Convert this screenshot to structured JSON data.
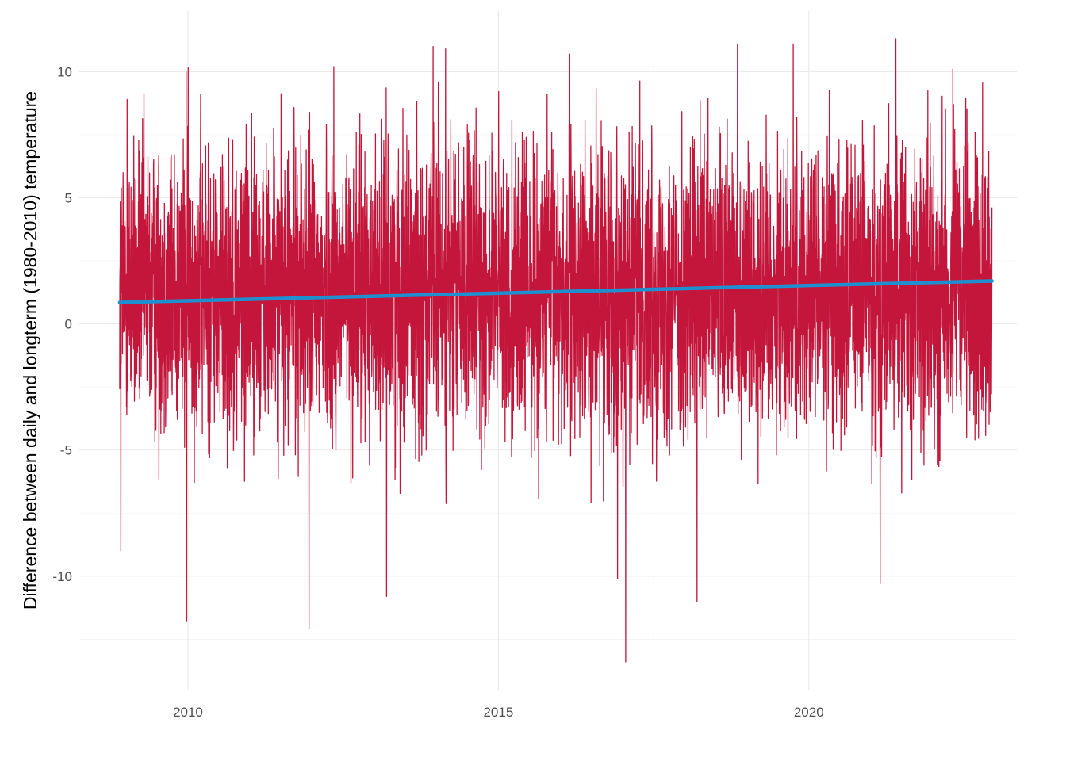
{
  "chart_data": {
    "type": "line",
    "title": "",
    "xlabel": "",
    "ylabel": "Difference between daily and longterm (1980-2010) temperature",
    "xlim": [
      2008.25,
      2023.35
    ],
    "ylim": [
      -14.5,
      12.4
    ],
    "x_ticks": [
      2010,
      2015,
      2020
    ],
    "x_minor_ticks": [
      2012.5,
      2017.5,
      2022.5
    ],
    "y_ticks": [
      -10,
      -5,
      0,
      5,
      10
    ],
    "y_minor_ticks": [
      -12.5,
      -7.5,
      -2.5,
      2.5,
      7.5
    ],
    "grid": true,
    "legend": "none",
    "series": [
      {
        "style": "line",
        "color": "#c4163a",
        "x_start": 2008.9,
        "x_end": 2022.95,
        "samples_per_year": 365,
        "baseline": 1.3,
        "spread": 3.3,
        "range": [
          -13.4,
          11.3
        ],
        "extremes": [
          {
            "x": 2008.92,
            "y": -9.0
          },
          {
            "x": 2009.02,
            "y": 8.9
          },
          {
            "x": 2009.97,
            "y": 10.0
          },
          {
            "x": 2009.98,
            "y": -11.8
          },
          {
            "x": 2011.95,
            "y": -12.1
          },
          {
            "x": 2012.35,
            "y": 10.2
          },
          {
            "x": 2013.2,
            "y": -10.8
          },
          {
            "x": 2013.95,
            "y": 11.0
          },
          {
            "x": 2014.15,
            "y": 10.9
          },
          {
            "x": 2016.15,
            "y": 10.7
          },
          {
            "x": 2016.92,
            "y": -10.1
          },
          {
            "x": 2017.05,
            "y": -13.4
          },
          {
            "x": 2018.2,
            "y": -11.0
          },
          {
            "x": 2018.85,
            "y": 11.1
          },
          {
            "x": 2019.75,
            "y": 11.1
          },
          {
            "x": 2021.15,
            "y": -10.3
          },
          {
            "x": 2021.4,
            "y": 11.3
          },
          {
            "x": 2022.32,
            "y": 10.1
          }
        ]
      },
      {
        "style": "trend",
        "color": "#1f8fd0",
        "x": [
          2008.9,
          2022.95
        ],
        "y": [
          0.85,
          1.7
        ]
      }
    ]
  }
}
